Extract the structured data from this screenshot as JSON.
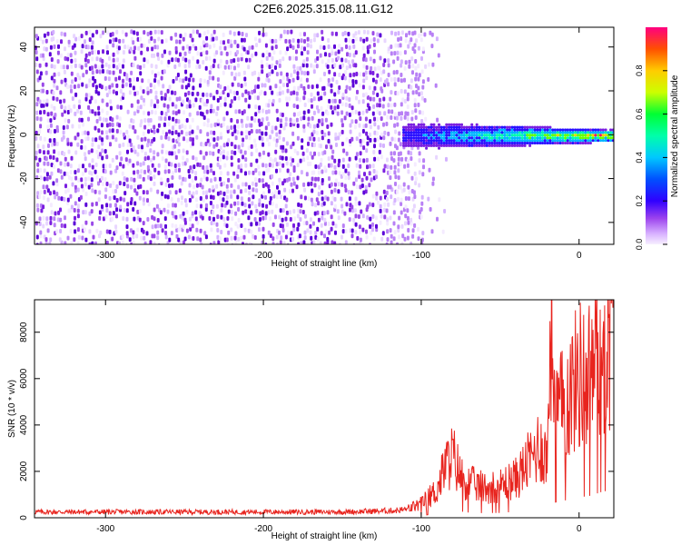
{
  "title": "C2E6.2025.315.08.11.G12",
  "colors": {
    "spectrogram_scale": [
      "#f7efff",
      "#d7b0ff",
      "#9c43ee",
      "#6a00e0",
      "#0000ff",
      "#00c8ff",
      "#00ff66",
      "#ffff00",
      "#ff7f00",
      "#ff0066"
    ],
    "snr_line": "#e8241e",
    "axes": "#000000"
  },
  "chart_data": [
    {
      "type": "heatmap",
      "title": "",
      "xlabel": "Height of straight line (km)",
      "ylabel": "Frequency (Hz)",
      "colorbar_label": "Normalized spectral amplitude",
      "xlim": [
        -345,
        22
      ],
      "ylim": [
        -50,
        49
      ],
      "x_ticks": [
        -300,
        -200,
        -100,
        0
      ],
      "y_ticks": [
        -40,
        -20,
        0,
        20,
        40
      ],
      "colorbar_ticks": [
        0.0,
        0.2,
        0.4,
        0.6,
        0.8
      ],
      "colorbar_range": [
        0,
        1
      ],
      "regions": [
        {
          "x_range": [
            -345,
            -100
          ],
          "f_range": [
            -50,
            49
          ],
          "amplitude": 0.05,
          "description_text": ""
        },
        {
          "x_range": [
            -100,
            22
          ],
          "f_center": 0,
          "f_halfwidth": 4,
          "amplitude_max": 1.0
        }
      ]
    },
    {
      "type": "line",
      "title": "",
      "xlabel": "Height of straight line (km)",
      "ylabel": "SNR (10 * v/v)",
      "xlim": [
        -345,
        22
      ],
      "ylim": [
        0,
        9400
      ],
      "x_ticks": [
        -300,
        -200,
        -100,
        0
      ],
      "y_ticks": [
        0,
        2000,
        4000,
        6000,
        8000
      ],
      "series": [
        {
          "x": [
            -345,
            -300,
            -250,
            -200,
            -150,
            -120,
            -110,
            -100,
            -90,
            -85,
            -80,
            -75,
            -70,
            -60,
            -50,
            -40,
            -30,
            -25,
            -20,
            -18,
            -15,
            -10,
            -5,
            0,
            5,
            10,
            15,
            20
          ],
          "values": [
            250,
            250,
            250,
            250,
            250,
            300,
            350,
            600,
            1200,
            2200,
            2700,
            1800,
            1500,
            1300,
            1400,
            1700,
            2600,
            3200,
            2500,
            9300,
            4500,
            4800,
            5500,
            6200,
            6000,
            6800,
            7500,
            8000
          ]
        }
      ]
    }
  ]
}
